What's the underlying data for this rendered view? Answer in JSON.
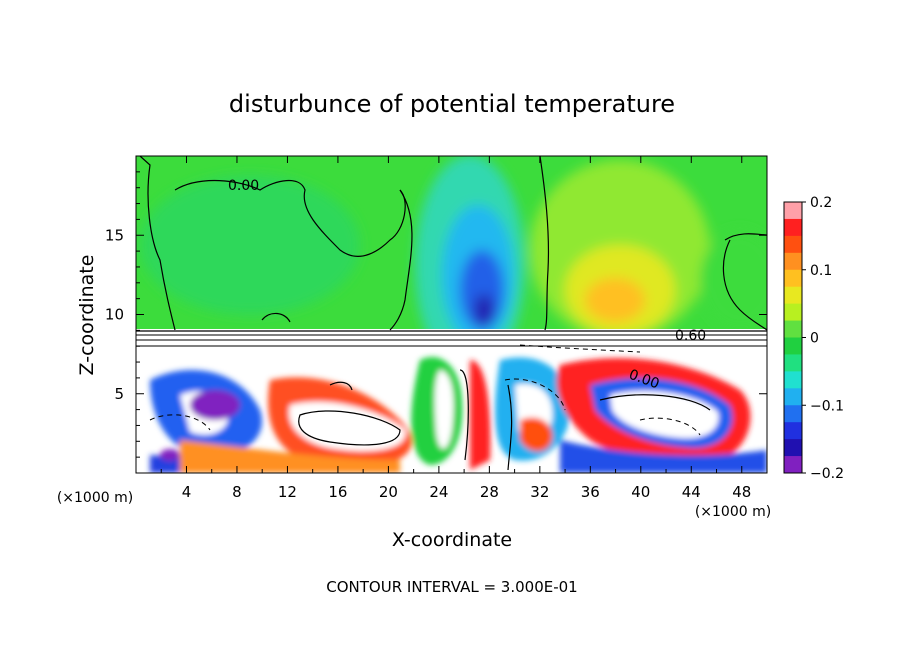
{
  "chart_data": {
    "type": "heatmap",
    "title": "disturbunce of potential temperature",
    "xlabel": "X-coordinate",
    "ylabel": "Z-coordinate",
    "x_unit": "(×1000 m)",
    "y_unit": "(×1000 m)",
    "xlim": [
      0,
      50
    ],
    "ylim": [
      0,
      20
    ],
    "x_ticks": [
      "4",
      "8",
      "12",
      "16",
      "20",
      "24",
      "28",
      "32",
      "36",
      "40",
      "44",
      "48"
    ],
    "y_ticks": [
      "5",
      "10",
      "15"
    ],
    "colorbar": {
      "range": [
        -0.2,
        0.2
      ],
      "ticks": [
        "0.2",
        "0.1",
        "0",
        "−0.1",
        "−0.2"
      ],
      "colors": [
        "#ffa0a8",
        "#ff2020",
        "#ff5010",
        "#ff9020",
        "#ffc020",
        "#e8e820",
        "#b8f020",
        "#60e040",
        "#20d040",
        "#20e080",
        "#20e0d0",
        "#20b0f0",
        "#2070f0",
        "#2030e0",
        "#2010b0",
        "#8020c0"
      ]
    },
    "contour_labels": [
      "0.00",
      "0.60",
      "0.00"
    ],
    "footer": "CONTOUR INTERVAL = 3.000E-01"
  }
}
